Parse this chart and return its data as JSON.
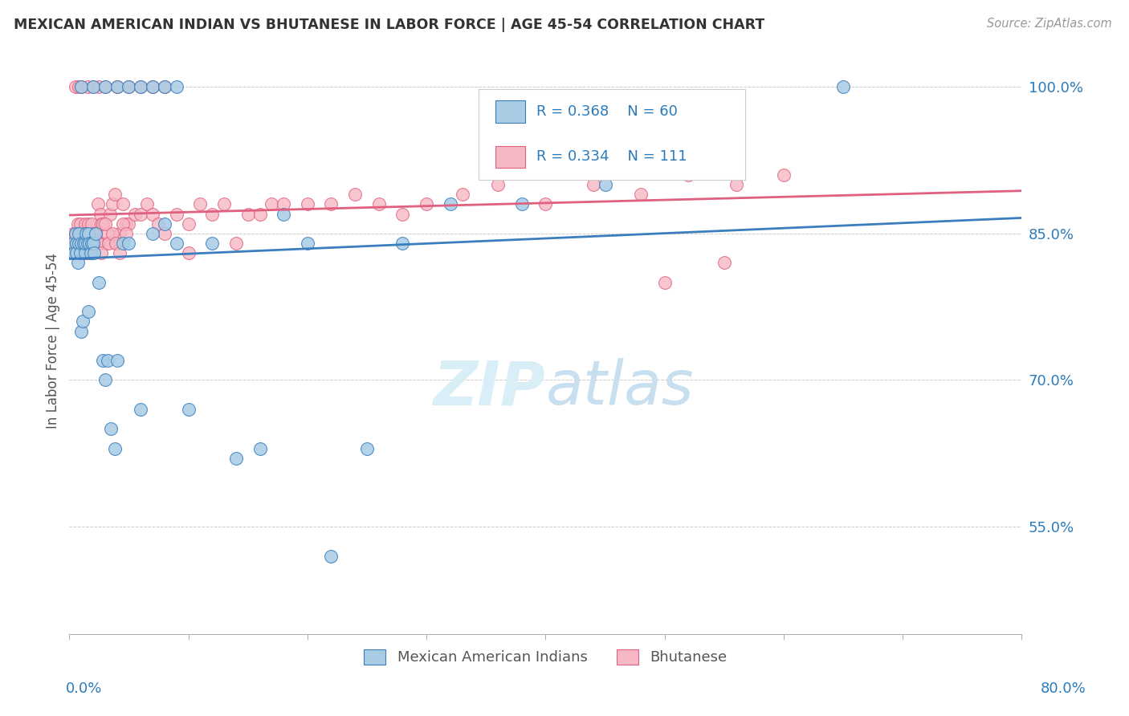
{
  "title": "MEXICAN AMERICAN INDIAN VS BHUTANESE IN LABOR FORCE | AGE 45-54 CORRELATION CHART",
  "source": "Source: ZipAtlas.com",
  "ylabel": "In Labor Force | Age 45-54",
  "xmin": 0.0,
  "xmax": 0.8,
  "ymin": 0.44,
  "ymax": 1.04,
  "color_blue": "#a8cce4",
  "color_pink": "#f5b8c4",
  "line_blue": "#3a7ebf",
  "line_pink": "#e06080",
  "legend_R_color": "#2b7bba",
  "watermark_color": "#daeef8",
  "blue_x": [
    0.003,
    0.004,
    0.005,
    0.006,
    0.006,
    0.007,
    0.008,
    0.008,
    0.009,
    0.01,
    0.01,
    0.011,
    0.012,
    0.013,
    0.013,
    0.014,
    0.015,
    0.016,
    0.016,
    0.017,
    0.018,
    0.019,
    0.02,
    0.021,
    0.022,
    0.025,
    0.028,
    0.03,
    0.032,
    0.035,
    0.038,
    0.04,
    0.045,
    0.05,
    0.06,
    0.07,
    0.08,
    0.09,
    0.1,
    0.12,
    0.14,
    0.16,
    0.18,
    0.2,
    0.22,
    0.25,
    0.28,
    0.32,
    0.38,
    0.45,
    0.01,
    0.02,
    0.03,
    0.04,
    0.05,
    0.06,
    0.07,
    0.08,
    0.09,
    0.65
  ],
  "blue_y": [
    0.84,
    0.83,
    0.85,
    0.84,
    0.83,
    0.82,
    0.84,
    0.85,
    0.83,
    0.84,
    0.75,
    0.76,
    0.84,
    0.83,
    0.84,
    0.85,
    0.84,
    0.77,
    0.85,
    0.84,
    0.83,
    0.84,
    0.84,
    0.83,
    0.85,
    0.8,
    0.72,
    0.7,
    0.72,
    0.65,
    0.63,
    0.72,
    0.84,
    0.84,
    0.67,
    0.85,
    0.86,
    0.84,
    0.67,
    0.84,
    0.62,
    0.63,
    0.87,
    0.84,
    0.52,
    0.63,
    0.84,
    0.88,
    0.88,
    0.9,
    1.0,
    1.0,
    1.0,
    1.0,
    1.0,
    1.0,
    1.0,
    1.0,
    1.0,
    1.0
  ],
  "pink_x": [
    0.002,
    0.003,
    0.004,
    0.005,
    0.005,
    0.006,
    0.006,
    0.007,
    0.007,
    0.008,
    0.008,
    0.009,
    0.009,
    0.01,
    0.01,
    0.011,
    0.011,
    0.012,
    0.012,
    0.013,
    0.013,
    0.014,
    0.015,
    0.015,
    0.016,
    0.016,
    0.017,
    0.018,
    0.018,
    0.019,
    0.02,
    0.02,
    0.021,
    0.022,
    0.022,
    0.024,
    0.025,
    0.026,
    0.027,
    0.028,
    0.03,
    0.032,
    0.034,
    0.036,
    0.038,
    0.04,
    0.042,
    0.045,
    0.048,
    0.05,
    0.055,
    0.06,
    0.065,
    0.07,
    0.075,
    0.08,
    0.09,
    0.1,
    0.11,
    0.12,
    0.13,
    0.14,
    0.15,
    0.16,
    0.17,
    0.18,
    0.2,
    0.22,
    0.24,
    0.26,
    0.28,
    0.3,
    0.33,
    0.36,
    0.4,
    0.44,
    0.48,
    0.52,
    0.56,
    0.6,
    0.005,
    0.008,
    0.01,
    0.015,
    0.02,
    0.025,
    0.03,
    0.04,
    0.05,
    0.06,
    0.07,
    0.08,
    0.5,
    0.55,
    0.003,
    0.006,
    0.009,
    0.012,
    0.015,
    0.018,
    0.021,
    0.024,
    0.027,
    0.03,
    0.033,
    0.036,
    0.039,
    0.042,
    0.045,
    0.048,
    0.1
  ],
  "pink_y": [
    0.84,
    0.85,
    0.83,
    0.84,
    0.85,
    0.84,
    0.85,
    0.83,
    0.86,
    0.84,
    0.85,
    0.83,
    0.86,
    0.84,
    0.85,
    0.83,
    0.85,
    0.84,
    0.85,
    0.84,
    0.86,
    0.83,
    0.84,
    0.83,
    0.86,
    0.84,
    0.85,
    0.84,
    0.83,
    0.86,
    0.84,
    0.85,
    0.84,
    0.85,
    0.84,
    0.88,
    0.84,
    0.87,
    0.86,
    0.86,
    0.84,
    0.85,
    0.87,
    0.88,
    0.89,
    0.84,
    0.85,
    0.88,
    0.86,
    0.86,
    0.87,
    0.87,
    0.88,
    0.87,
    0.86,
    0.85,
    0.87,
    0.86,
    0.88,
    0.87,
    0.88,
    0.84,
    0.87,
    0.87,
    0.88,
    0.88,
    0.88,
    0.88,
    0.89,
    0.88,
    0.87,
    0.88,
    0.89,
    0.9,
    0.88,
    0.9,
    0.89,
    0.91,
    0.9,
    0.91,
    1.0,
    1.0,
    1.0,
    1.0,
    1.0,
    1.0,
    1.0,
    1.0,
    1.0,
    1.0,
    1.0,
    1.0,
    0.8,
    0.82,
    0.83,
    0.84,
    0.83,
    0.85,
    0.84,
    0.83,
    0.85,
    0.84,
    0.83,
    0.86,
    0.84,
    0.85,
    0.84,
    0.83,
    0.86,
    0.85,
    0.83
  ]
}
